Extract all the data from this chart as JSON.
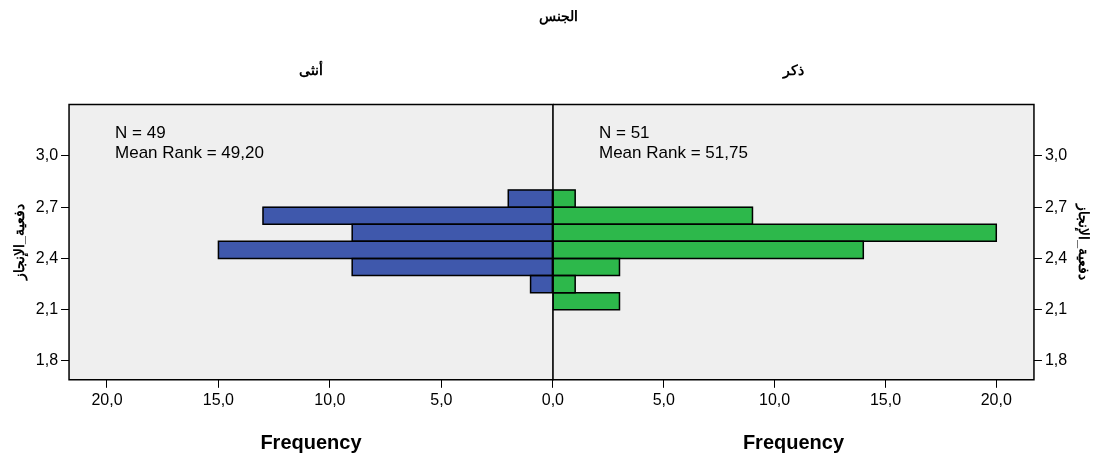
{
  "chart_data": [
    {
      "type": "histogram",
      "title": "الجنس",
      "subtitle": "أنثى",
      "orientation": "horizontal",
      "xlabel": "Frequency",
      "ylabel": "دفعية_الإنجاز",
      "bins": [
        2.1,
        2.2,
        2.3,
        2.4,
        2.5,
        2.6,
        2.7,
        2.8
      ],
      "values": [
        0,
        1,
        9,
        15,
        9,
        13,
        2
      ],
      "color": "#3f58ac",
      "xlim": [
        21.7,
        0
      ],
      "xticks": [
        {
          "value": 20,
          "label": "20,0"
        },
        {
          "value": 15,
          "label": "15,0"
        },
        {
          "value": 10,
          "label": "10,0"
        },
        {
          "value": 5,
          "label": "5,0"
        },
        {
          "value": 0,
          "label": "0,0"
        }
      ],
      "ylim": [
        1.69,
        3.3
      ],
      "yticks": [
        {
          "value": 1.8,
          "label": "1,8"
        },
        {
          "value": 2.1,
          "label": "2,1"
        },
        {
          "value": 2.4,
          "label": "2,4"
        },
        {
          "value": 2.7,
          "label": "2,7"
        },
        {
          "value": 3.0,
          "label": "3,0"
        }
      ],
      "annotations": [
        "N = 49",
        "Mean Rank = 49,20"
      ],
      "grid": false,
      "legend": false
    },
    {
      "type": "histogram",
      "subtitle": "ذكر",
      "orientation": "horizontal",
      "xlabel": "Frequency",
      "ylabel": "دفعية_الإنجاز",
      "bins": [
        2.1,
        2.2,
        2.3,
        2.4,
        2.5,
        2.6,
        2.7,
        2.8
      ],
      "values": [
        3,
        1,
        3,
        14,
        20,
        9,
        1
      ],
      "color": "#2db84b",
      "xlim": [
        0,
        21.7
      ],
      "xticks": [
        {
          "value": 5,
          "label": "5,0"
        },
        {
          "value": 10,
          "label": "10,0"
        },
        {
          "value": 15,
          "label": "15,0"
        },
        {
          "value": 20,
          "label": "20,0"
        }
      ],
      "ylim": [
        1.69,
        3.3
      ],
      "yticks": [
        {
          "value": 1.8,
          "label": "1,8"
        },
        {
          "value": 2.1,
          "label": "2,1"
        },
        {
          "value": 2.4,
          "label": "2,4"
        },
        {
          "value": 2.7,
          "label": "2,7"
        },
        {
          "value": 3.0,
          "label": "3,0"
        }
      ],
      "annotations": [
        "N = 51",
        "Mean Rank = 51,75"
      ],
      "grid": false,
      "legend": false
    }
  ]
}
